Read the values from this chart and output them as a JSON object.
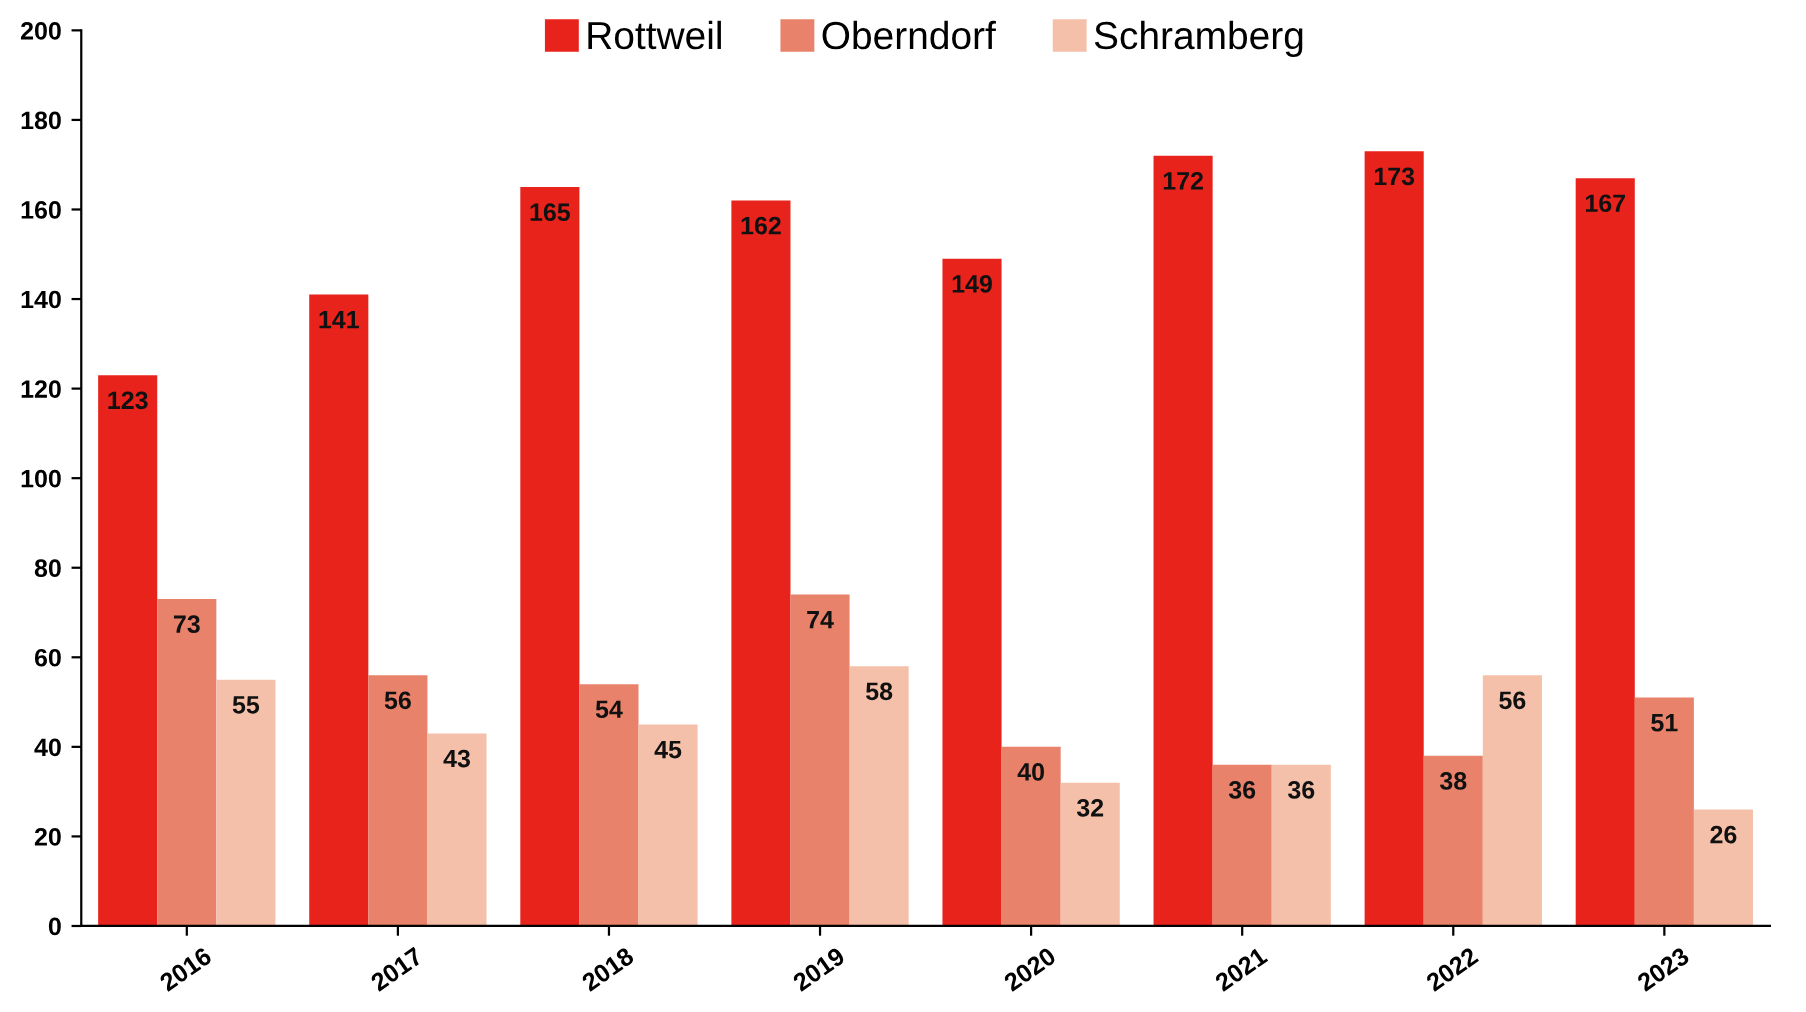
{
  "chart_data": {
    "type": "bar",
    "categories": [
      "2016",
      "2017",
      "2018",
      "2019",
      "2020",
      "2021",
      "2022",
      "2023"
    ],
    "series": [
      {
        "name": "Rottweil",
        "color": "#e8231c",
        "values": [
          123,
          141,
          165,
          162,
          149,
          172,
          173,
          167
        ]
      },
      {
        "name": "Oberndorf",
        "color": "#e8826a",
        "values": [
          73,
          56,
          54,
          74,
          40,
          36,
          38,
          51
        ]
      },
      {
        "name": "Schramberg",
        "color": "#f5c0aa",
        "values": [
          55,
          43,
          45,
          58,
          32,
          36,
          56,
          26
        ]
      }
    ],
    "ylim": [
      0,
      200
    ],
    "yticks": [
      0,
      20,
      40,
      60,
      80,
      100,
      120,
      140,
      160,
      180,
      200
    ],
    "grid": false,
    "legend": "top",
    "data_labels": true
  }
}
